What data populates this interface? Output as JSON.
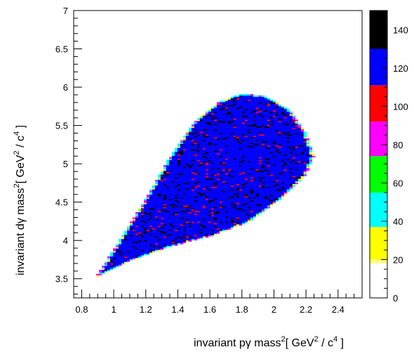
{
  "chart_data": {
    "type": "heatmap",
    "xlabel": "invariant pγ mass",
    "ylabel": "invariant dγ mass",
    "axis_unit": {
      "open": "[ GeV",
      "mid": " / c",
      "close": "  ]",
      "label_exp": "2",
      "unit_exp1": "2",
      "unit_exp2": "4"
    },
    "xlim": [
      0.75,
      2.55
    ],
    "ylim": [
      3.25,
      7.0
    ],
    "x_ticks": [
      "0.8",
      "1",
      "1.2",
      "1.4",
      "1.6",
      "1.8",
      "2",
      "2.2",
      "2.4"
    ],
    "y_ticks": [
      "3.5",
      "4",
      "4.5",
      "5",
      "5.5",
      "6",
      "6.5",
      "7"
    ],
    "z_range": [
      0,
      150
    ],
    "z_ticks": [
      "0",
      "20",
      "40",
      "60",
      "80",
      "100",
      "120",
      "140"
    ],
    "palette": [
      {
        "from": 0,
        "to": 18,
        "color": "#ffffff"
      },
      {
        "from": 18,
        "to": 20,
        "color": "#ffff80"
      },
      {
        "from": 20,
        "to": 37,
        "color": "#ffff00"
      },
      {
        "from": 37,
        "to": 55,
        "color": "#00ffff"
      },
      {
        "from": 55,
        "to": 74,
        "color": "#00ff00"
      },
      {
        "from": 74,
        "to": 92,
        "color": "#ff00ff"
      },
      {
        "from": 92,
        "to": 111,
        "color": "#ff0000"
      },
      {
        "from": 111,
        "to": 130,
        "color": "#0000ff"
      },
      {
        "from": 130,
        "to": 150,
        "color": "#000000"
      }
    ],
    "bin_size": 0.0175,
    "region": {
      "description_points": [
        [
          0.89,
          3.53
        ],
        [
          1.05,
          4.05
        ],
        [
          1.2,
          4.55
        ],
        [
          1.35,
          5.1
        ],
        [
          1.5,
          5.55
        ],
        [
          1.65,
          5.8
        ],
        [
          1.8,
          5.92
        ],
        [
          1.95,
          5.88
        ],
        [
          2.1,
          5.7
        ],
        [
          2.2,
          5.4
        ],
        [
          2.25,
          5.1
        ],
        [
          2.2,
          4.85
        ],
        [
          2.05,
          4.55
        ],
        [
          1.85,
          4.25
        ],
        [
          1.6,
          4.05
        ],
        [
          1.35,
          3.92
        ],
        [
          1.1,
          3.73
        ],
        [
          0.89,
          3.53
        ]
      ],
      "fill_value": 120,
      "edge_value": 45
    },
    "grid": false,
    "legend": "color-scale-right"
  }
}
